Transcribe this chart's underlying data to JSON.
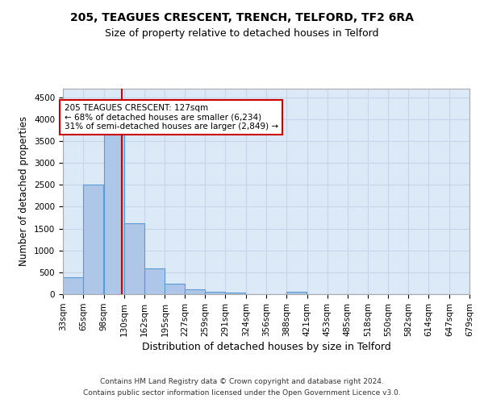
{
  "title1": "205, TEAGUES CRESCENT, TRENCH, TELFORD, TF2 6RA",
  "title2": "Size of property relative to detached houses in Telford",
  "xlabel": "Distribution of detached houses by size in Telford",
  "ylabel": "Number of detached properties",
  "bins": [
    33,
    65,
    98,
    130,
    162,
    195,
    227,
    259,
    291,
    324,
    356,
    388,
    421,
    453,
    485,
    518,
    550,
    582,
    614,
    647,
    679
  ],
  "counts": [
    390,
    2500,
    3720,
    1620,
    590,
    245,
    110,
    50,
    40,
    0,
    0,
    50,
    0,
    0,
    0,
    0,
    0,
    0,
    0,
    0
  ],
  "bar_color": "#aec6e8",
  "bar_edge_color": "#5b9bd5",
  "vline_x": 127,
  "vline_color": "#cc0000",
  "annotation_line1": "205 TEAGUES CRESCENT: 127sqm",
  "annotation_line2": "← 68% of detached houses are smaller (6,234)",
  "annotation_line3": "31% of semi-detached houses are larger (2,849) →",
  "annotation_box_color": "white",
  "annotation_box_edge_color": "#cc0000",
  "ylim": [
    0,
    4700
  ],
  "yticks": [
    0,
    500,
    1000,
    1500,
    2000,
    2500,
    3000,
    3500,
    4000,
    4500
  ],
  "grid_color": "#c8d4e8",
  "background_color": "#dce9f7",
  "footer_line1": "Contains HM Land Registry data © Crown copyright and database right 2024.",
  "footer_line2": "Contains public sector information licensed under the Open Government Licence v3.0.",
  "title1_fontsize": 10,
  "title2_fontsize": 9,
  "xlabel_fontsize": 9,
  "ylabel_fontsize": 8.5,
  "tick_fontsize": 7.5,
  "annotation_fontsize": 7.5,
  "footer_fontsize": 6.5
}
